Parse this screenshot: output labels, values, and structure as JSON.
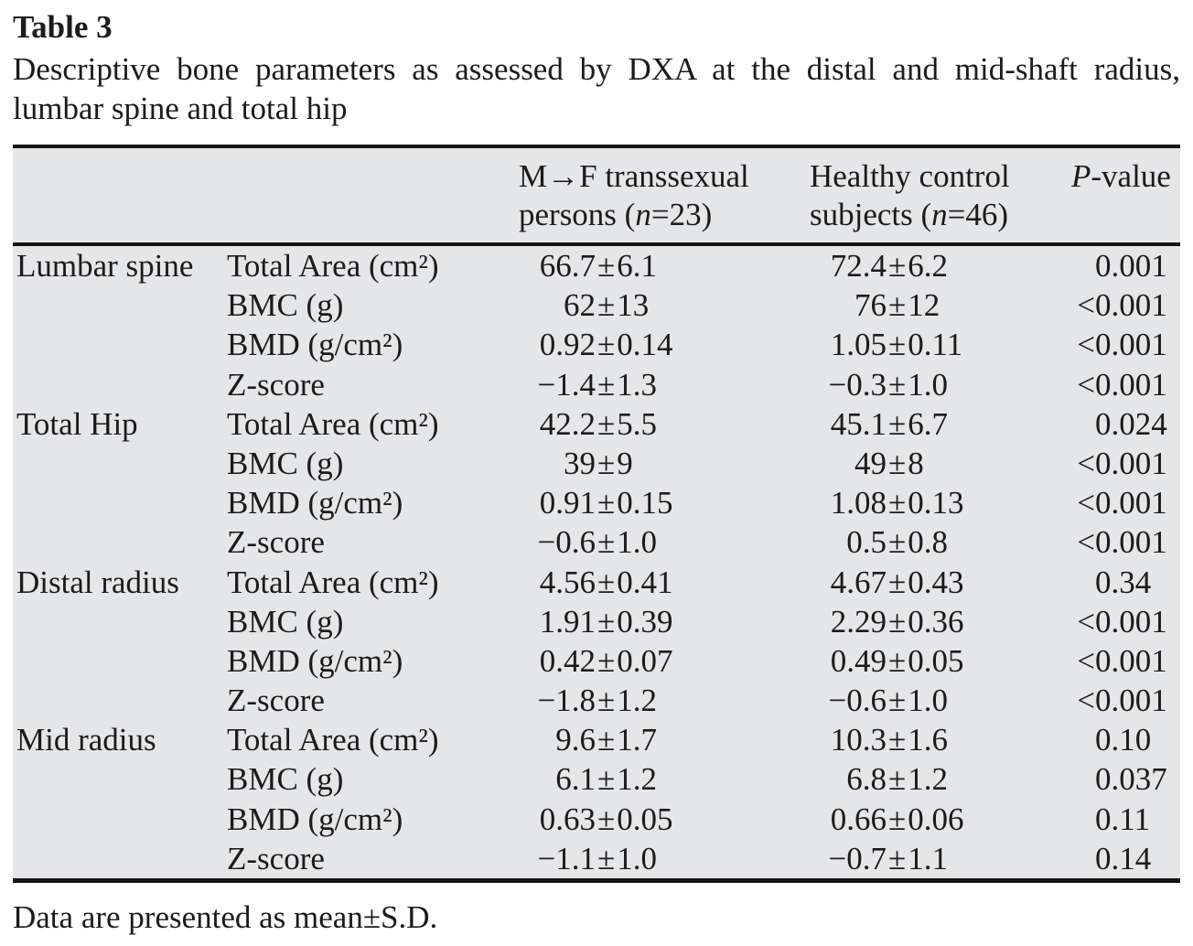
{
  "title": "Table 3",
  "caption_line1": "Descriptive bone parameters as assessed by DXA at the distal and mid-shaft radius,",
  "caption_line2": "lumbar spine and total hip",
  "footnote": "Data are presented as mean±S.D.",
  "colors": {
    "table_background": "#e5e6e8",
    "rule": "#161314",
    "text": "#1c1a1b"
  },
  "header": {
    "col_mf": [
      [
        {
          "t": "M→F transsexual"
        }
      ],
      [
        {
          "t": "persons ("
        },
        {
          "t": "n",
          "i": true
        },
        {
          "t": "=23)"
        }
      ]
    ],
    "col_hc": [
      [
        {
          "t": "Healthy control"
        }
      ],
      [
        {
          "t": "subjects ("
        },
        {
          "t": "n",
          "i": true
        },
        {
          "t": "=46)"
        }
      ]
    ],
    "col_p": [
      [
        {
          "t": "P",
          "i": true
        },
        {
          "t": "-value"
        }
      ]
    ]
  },
  "sections": [
    {
      "region": "Lumbar spine",
      "rows": [
        {
          "param": "Total Area (cm²)",
          "mf": "66.7±6.1",
          "hc": "72.4±6.2",
          "p": "0.001"
        },
        {
          "param": "BMC (g)",
          "mf": "62±13",
          "hc": "76±12",
          "p": "<0.001"
        },
        {
          "param": "BMD (g/cm²)",
          "mf": "0.92±0.14",
          "hc": "1.05±0.11",
          "p": "<0.001"
        },
        {
          "param": "Z-score",
          "mf": "−1.4±1.3",
          "hc": "−0.3±1.0",
          "p": "<0.001"
        }
      ]
    },
    {
      "region": "Total Hip",
      "rows": [
        {
          "param": "Total Area (cm²)",
          "mf": "42.2±5.5",
          "hc": "45.1±6.7",
          "p": "0.024"
        },
        {
          "param": "BMC (g)",
          "mf": "39±9",
          "hc": "49±8",
          "p": "<0.001"
        },
        {
          "param": "BMD (g/cm²)",
          "mf": "0.91±0.15",
          "hc": "1.08±0.13",
          "p": "<0.001"
        },
        {
          "param": "Z-score",
          "mf": "−0.6±1.0",
          "hc": "0.5±0.8",
          "p": "<0.001"
        }
      ]
    },
    {
      "region": "Distal radius",
      "rows": [
        {
          "param": "Total Area (cm²)",
          "mf": "4.56±0.41",
          "hc": "4.67±0.43",
          "p": "0.34"
        },
        {
          "param": "BMC (g)",
          "mf": "1.91±0.39",
          "hc": "2.29±0.36",
          "p": "<0.001"
        },
        {
          "param": "BMD (g/cm²)",
          "mf": "0.42±0.07",
          "hc": "0.49±0.05",
          "p": "<0.001"
        },
        {
          "param": "Z-score",
          "mf": "−1.8±1.2",
          "hc": "−0.6±1.0",
          "p": "<0.001"
        }
      ]
    },
    {
      "region": "Mid radius",
      "rows": [
        {
          "param": "Total Area (cm²)",
          "mf": "9.6±1.7",
          "hc": "10.3±1.6",
          "p": "0.10"
        },
        {
          "param": "BMC (g)",
          "mf": "6.1±1.2",
          "hc": "6.8±1.2",
          "p": "0.037"
        },
        {
          "param": "BMD (g/cm²)",
          "mf": "0.63±0.05",
          "hc": "0.66±0.06",
          "p": "0.11"
        },
        {
          "param": "Z-score",
          "mf": "−1.1±1.0",
          "hc": "−0.7±1.1",
          "p": "0.14"
        }
      ]
    }
  ]
}
